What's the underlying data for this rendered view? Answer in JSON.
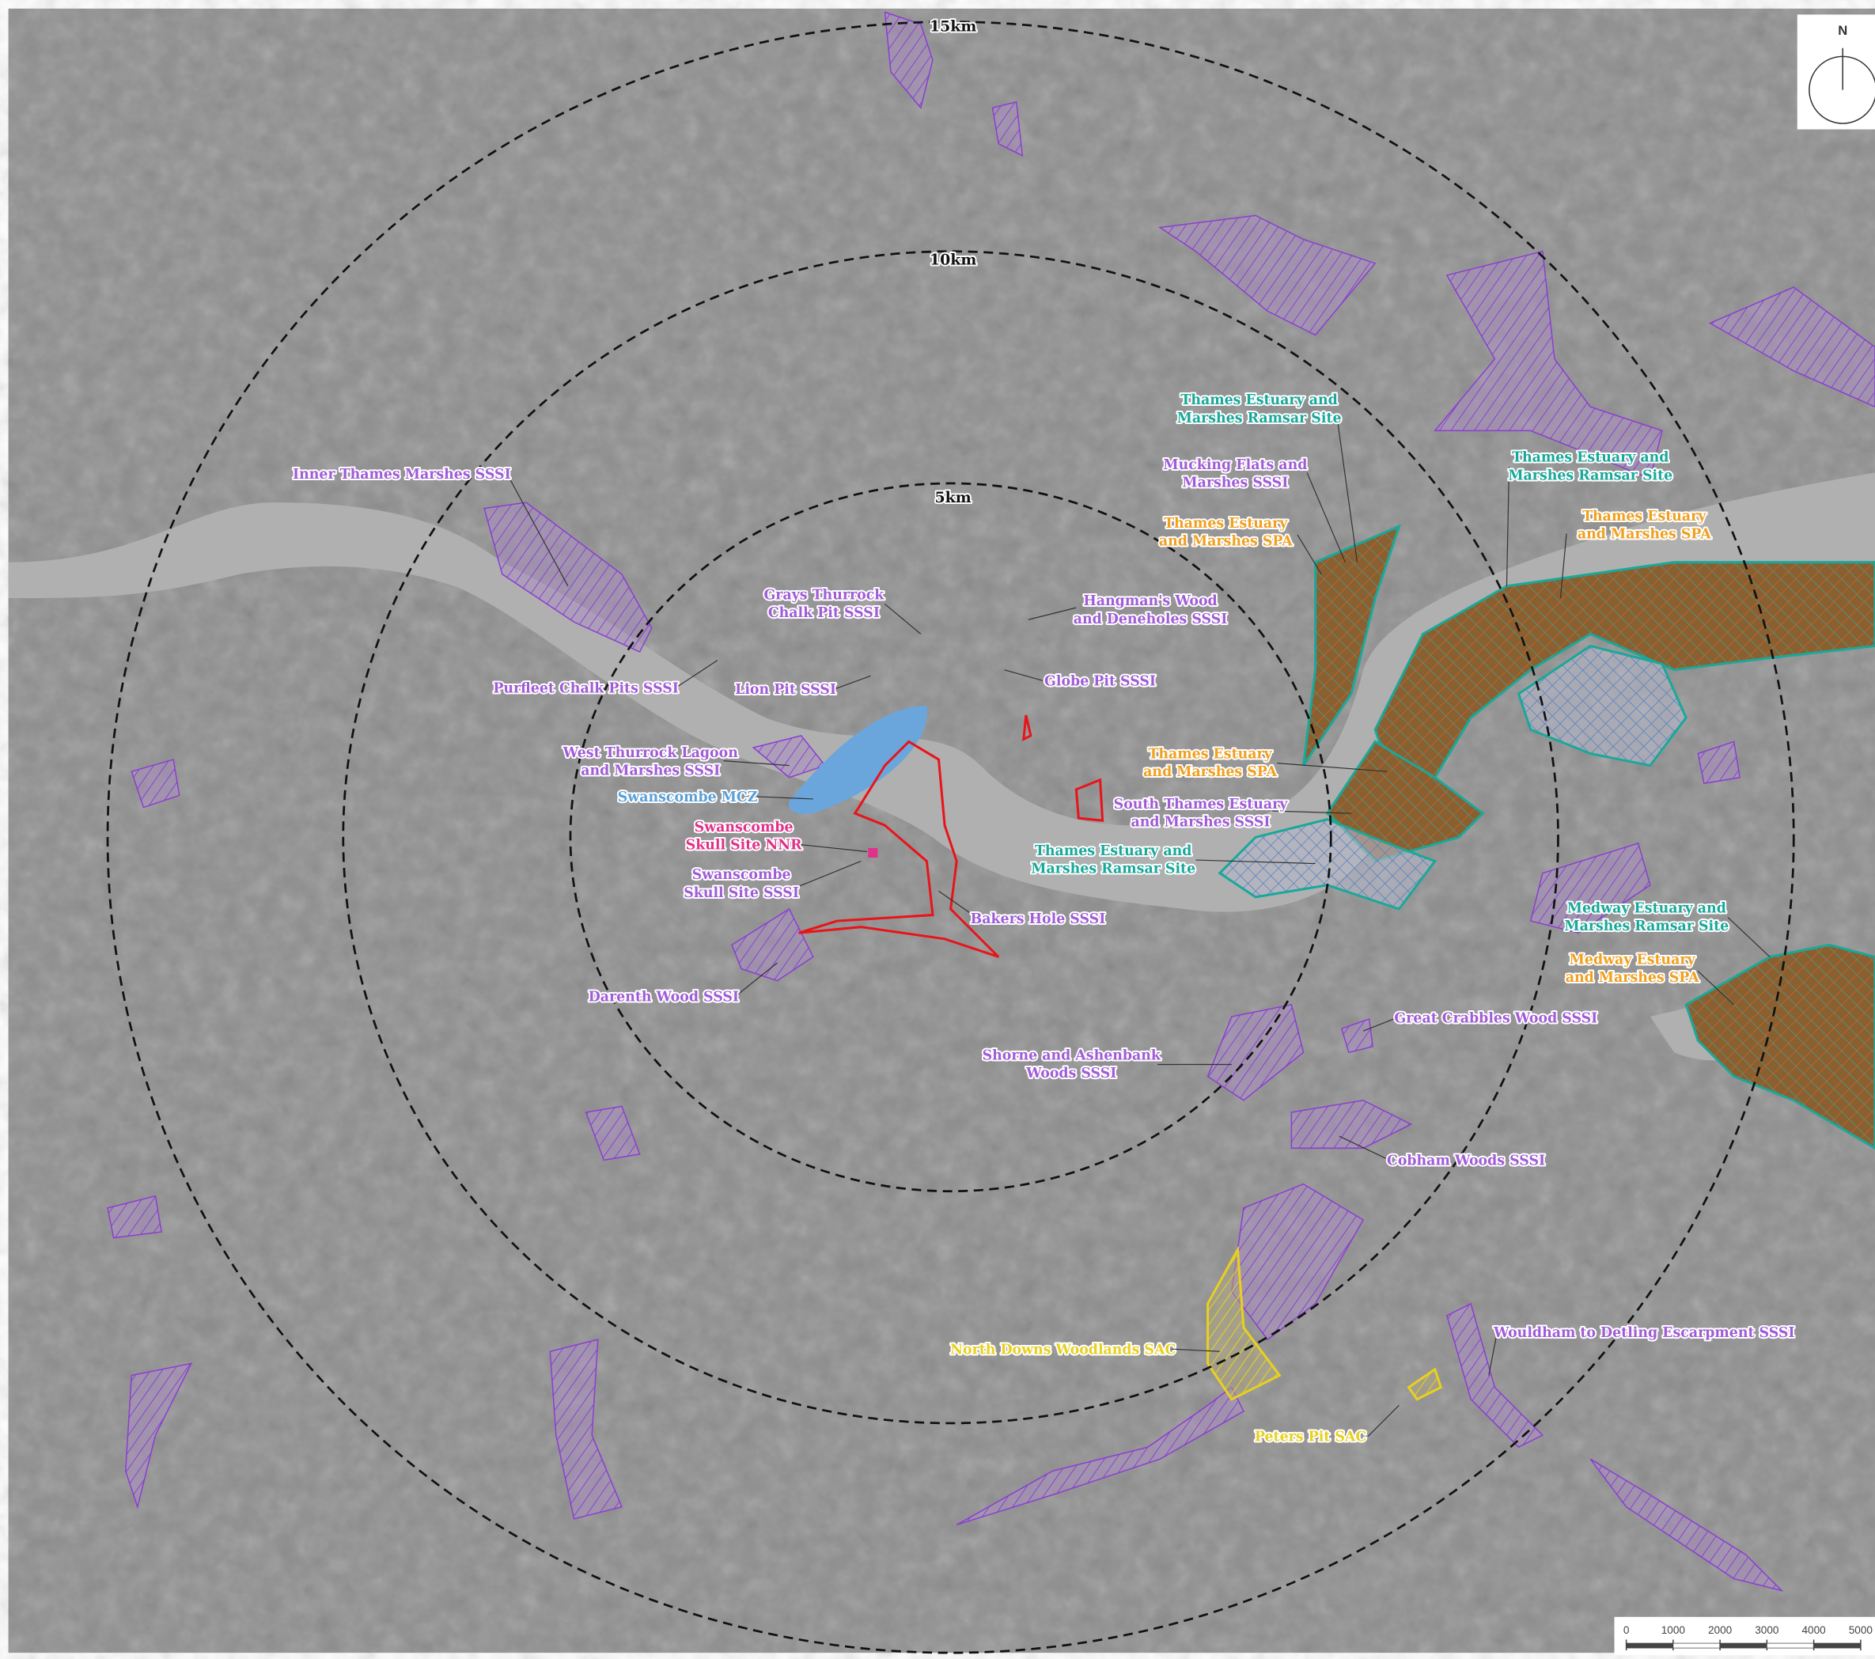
{
  "north": "N",
  "rings": [
    {
      "label": "15km"
    },
    {
      "label": "10km"
    },
    {
      "label": "5km"
    }
  ],
  "scale_bar": {
    "ticks": [
      0,
      1000,
      2000,
      3000,
      4000,
      5000
    ]
  },
  "labels": [
    {
      "lines": [
        "Inner Thames Marshes SSSI"
      ],
      "color": "#a05cd6"
    },
    {
      "lines": [
        "Grays Thurrock",
        "Chalk Pit SSSI"
      ],
      "color": "#a05cd6"
    },
    {
      "lines": [
        "Hangman's Wood",
        "and Deneholes SSSI"
      ],
      "color": "#a05cd6"
    },
    {
      "lines": [
        "Purfleet Chalk Pits SSSI"
      ],
      "color": "#a05cd6"
    },
    {
      "lines": [
        "Lion Pit SSSI"
      ],
      "color": "#a05cd6"
    },
    {
      "lines": [
        "Globe Pit SSSI"
      ],
      "color": "#a05cd6"
    },
    {
      "lines": [
        "West Thurrock Lagoon",
        "and Marshes SSSI"
      ],
      "color": "#a05cd6"
    },
    {
      "lines": [
        "Swanscombe MCZ"
      ],
      "color": "#5aa0d8"
    },
    {
      "lines": [
        "Swanscombe",
        "Skull Site NNR"
      ],
      "color": "#e0308a"
    },
    {
      "lines": [
        "Swanscombe",
        "Skull Site SSSI"
      ],
      "color": "#a05cd6"
    },
    {
      "lines": [
        "Bakers Hole SSSI"
      ],
      "color": "#a05cd6"
    },
    {
      "lines": [
        "Darenth Wood SSSI"
      ],
      "color": "#a05cd6"
    },
    {
      "lines": [
        "Thames Estuary and",
        "Marshes Ramsar Site"
      ],
      "color": "#1aa89a"
    },
    {
      "lines": [
        "Mucking Flats and",
        "Marshes SSSI"
      ],
      "color": "#a05cd6"
    },
    {
      "lines": [
        "Thames Estuary",
        "and Marshes SPA"
      ],
      "color": "#f0a020"
    },
    {
      "lines": [
        "Thames Estuary and",
        "Marshes Ramsar Site"
      ],
      "color": "#1aa89a"
    },
    {
      "lines": [
        "Thames Estuary",
        "and Marshes SPA"
      ],
      "color": "#f0a020"
    },
    {
      "lines": [
        "Thames Estuary",
        "and Marshes SPA"
      ],
      "color": "#f0a020"
    },
    {
      "lines": [
        "South Thames Estuary",
        "and Marshes SSSI"
      ],
      "color": "#a05cd6"
    },
    {
      "lines": [
        "Thames Estuary and",
        "Marshes Ramsar Site"
      ],
      "color": "#1aa89a"
    },
    {
      "lines": [
        "Medway Estuary and",
        "Marshes Ramsar Site"
      ],
      "color": "#1aa89a"
    },
    {
      "lines": [
        "Medway Estuary",
        "and Marshes SPA"
      ],
      "color": "#f0a020"
    },
    {
      "lines": [
        "Great Crabbles Wood SSSI"
      ],
      "color": "#a05cd6"
    },
    {
      "lines": [
        "Shorne and Ashenbank",
        "Woods SSSI"
      ],
      "color": "#a05cd6"
    },
    {
      "lines": [
        "Cobham Woods SSSI"
      ],
      "color": "#a05cd6"
    },
    {
      "lines": [
        "North Downs Woodlands SAC"
      ],
      "color": "#e8d020"
    },
    {
      "lines": [
        "Wouldham to Detling Escarpment SSSI"
      ],
      "color": "#a05cd6"
    },
    {
      "lines": [
        "Peters Pit SAC"
      ],
      "color": "#e8d020"
    }
  ]
}
